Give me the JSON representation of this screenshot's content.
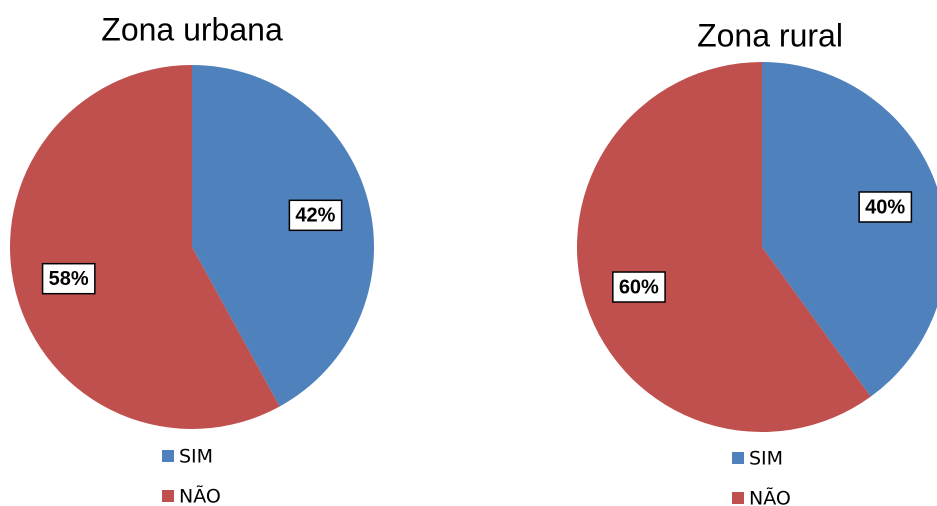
{
  "chart_data": [
    {
      "type": "pie",
      "title": "Zona urbana",
      "categories": [
        "SIM",
        "NÃO"
      ],
      "values": [
        42,
        58
      ],
      "value_labels": [
        "42%",
        "58%"
      ],
      "colors": [
        "#4f81bd",
        "#c0504d"
      ],
      "legend": "bottom"
    },
    {
      "type": "pie",
      "title": "Zona rural",
      "categories": [
        "SIM",
        "NÃO"
      ],
      "values": [
        40,
        60
      ],
      "value_labels": [
        "40%",
        "60%"
      ],
      "colors": [
        "#4f81bd",
        "#c0504d"
      ],
      "legend": "bottom"
    }
  ]
}
